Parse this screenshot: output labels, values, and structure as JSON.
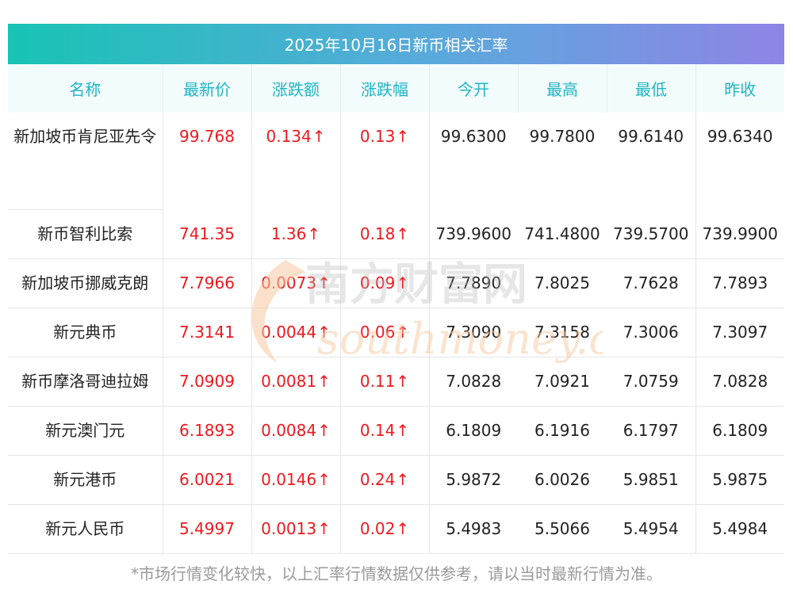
{
  "title": "2025年10月16日新币相关汇率",
  "columns": [
    "名称",
    "最新价",
    "涨跌额",
    "涨跌幅",
    "今开",
    "最高",
    "最低",
    "昨收"
  ],
  "arrow": "↑",
  "rows": [
    {
      "name": "新加坡币肯尼亚先令",
      "latest": "99.768",
      "change": "0.134",
      "change_pct": "0.13",
      "open": "99.6300",
      "high": "99.7800",
      "low": "99.6140",
      "prev_close": "99.6340"
    },
    {
      "name": "新币智利比索",
      "latest": "741.35",
      "change": "1.36",
      "change_pct": "0.18",
      "open": "739.9600",
      "high": "741.4800",
      "low": "739.5700",
      "prev_close": "739.9900"
    },
    {
      "name": "新加坡币挪威克朗",
      "latest": "7.7966",
      "change": "0.0073",
      "change_pct": "0.09",
      "open": "7.7890",
      "high": "7.8025",
      "low": "7.7628",
      "prev_close": "7.7893"
    },
    {
      "name": "新元典币",
      "latest": "7.3141",
      "change": "0.0044",
      "change_pct": "0.06",
      "open": "7.3090",
      "high": "7.3158",
      "low": "7.3006",
      "prev_close": "7.3097"
    },
    {
      "name": "新币摩洛哥迪拉姆",
      "latest": "7.0909",
      "change": "0.0081",
      "change_pct": "0.11",
      "open": "7.0828",
      "high": "7.0921",
      "low": "7.0759",
      "prev_close": "7.0828"
    },
    {
      "name": "新元澳门元",
      "latest": "6.1893",
      "change": "0.0084",
      "change_pct": "0.14",
      "open": "6.1809",
      "high": "6.1916",
      "low": "6.1797",
      "prev_close": "6.1809"
    },
    {
      "name": "新元港币",
      "latest": "6.0021",
      "change": "0.0146",
      "change_pct": "0.24",
      "open": "5.9872",
      "high": "6.0026",
      "low": "5.9851",
      "prev_close": "5.9875"
    },
    {
      "name": "新元人民币",
      "latest": "5.4997",
      "change": "0.0013",
      "change_pct": "0.02",
      "open": "5.4983",
      "high": "5.5066",
      "low": "5.4954",
      "prev_close": "5.4984"
    }
  ],
  "watermark": {
    "cn": "南方财富网",
    "en": "southmoney.com",
    "color": "#f7c9a0"
  },
  "footnote": "*市场行情变化较快，以上汇率行情数据仅供参考，请以当时最新行情为准。",
  "colors": {
    "up": "#f0181e",
    "header_text": "#1fb4c4",
    "title_start": "#18c3b5",
    "title_end": "#8f84e6"
  }
}
